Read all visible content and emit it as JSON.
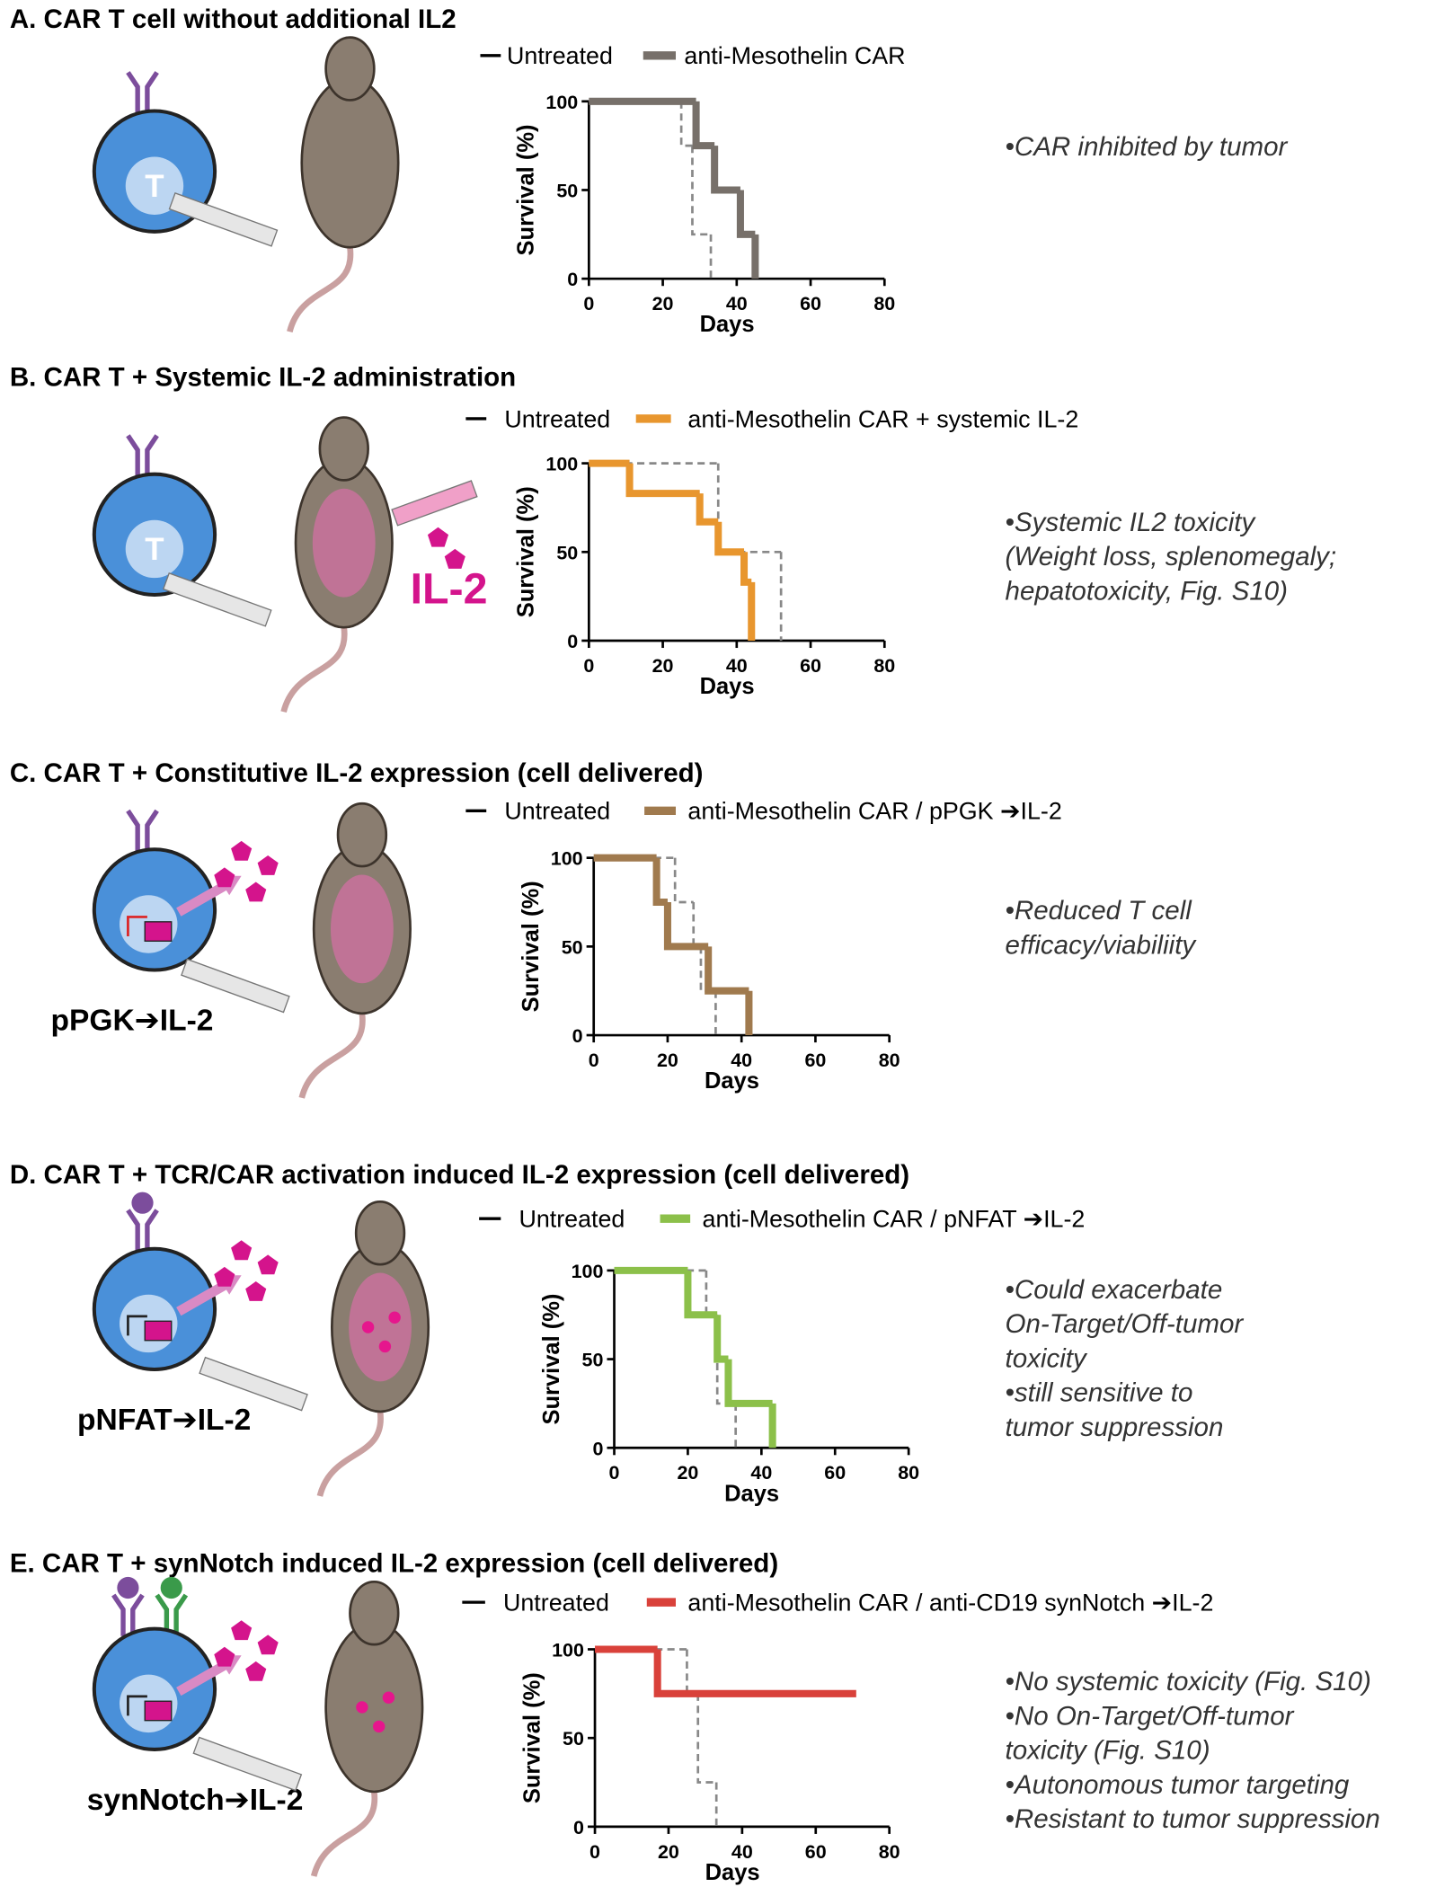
{
  "chart_data": [
    {
      "type": "line",
      "step": true,
      "title": "A. CAR T cell without additional IL2",
      "cell_text": "T",
      "xlabel": "Days",
      "ylabel": "Survival (%)",
      "xlim": [
        0,
        80
      ],
      "ylim": [
        0,
        100
      ],
      "xticks": [
        0,
        20,
        40,
        60,
        80
      ],
      "yticks": [
        0,
        50,
        100
      ],
      "series": [
        {
          "name": "Untreated",
          "color": "#888888",
          "dashed": true,
          "x": [
            0,
            25,
            28,
            33
          ],
          "values": [
            100,
            75,
            25,
            0
          ]
        },
        {
          "name": "anti-Mesothelin CAR",
          "color": "#77706a",
          "x": [
            0,
            29,
            34,
            41,
            45
          ],
          "values": [
            100,
            75,
            50,
            25,
            0
          ]
        }
      ],
      "annotations": [
        "•CAR inhibited by tumor"
      ]
    },
    {
      "type": "line",
      "step": true,
      "title": "B. CAR T + Systemic IL-2 administration",
      "cell_text": "T",
      "cytokine_label": "IL-2",
      "xlabel": "Days",
      "ylabel": "Survival (%)",
      "xlim": [
        0,
        80
      ],
      "ylim": [
        0,
        100
      ],
      "xticks": [
        0,
        20,
        40,
        60,
        80
      ],
      "yticks": [
        0,
        50,
        100
      ],
      "series": [
        {
          "name": "Untreated",
          "color": "#888888",
          "dashed": true,
          "x": [
            0,
            35,
            52
          ],
          "values": [
            100,
            50,
            0
          ]
        },
        {
          "name": "anti-Mesothelin CAR + systemic IL-2",
          "color": "#e8962e",
          "x": [
            0,
            11,
            30,
            35,
            42,
            44
          ],
          "values": [
            100,
            83,
            67,
            50,
            33,
            0
          ]
        }
      ],
      "annotations": [
        "•Systemic IL2 toxicity",
        "(Weight loss, splenomegaly;",
        "hepatotoxicity, Fig. S10)"
      ]
    },
    {
      "type": "line",
      "step": true,
      "title": "C. CAR T + Constitutive IL-2 expression (cell delivered)",
      "construct_label": "pPGK➔IL-2",
      "xlabel": "Days",
      "ylabel": "Survival (%)",
      "xlim": [
        0,
        80
      ],
      "ylim": [
        0,
        100
      ],
      "xticks": [
        0,
        20,
        40,
        60,
        80
      ],
      "yticks": [
        0,
        50,
        100
      ],
      "series": [
        {
          "name": "Untreated",
          "color": "#888888",
          "dashed": true,
          "x": [
            0,
            22,
            27,
            29,
            33
          ],
          "values": [
            100,
            75,
            50,
            25,
            0
          ]
        },
        {
          "name": "anti-Mesothelin CAR / pPGK ➔IL-2",
          "color": "#a07a4e",
          "x": [
            0,
            17,
            20,
            31,
            42
          ],
          "values": [
            100,
            75,
            50,
            25,
            0
          ]
        }
      ],
      "annotations": [
        "•Reduced T cell",
        "efficacy/viabiliity"
      ]
    },
    {
      "type": "line",
      "step": true,
      "title": "D. CAR T + TCR/CAR activation induced IL-2 expression (cell delivered)",
      "construct_label": "pNFAT➔IL-2",
      "xlabel": "Days",
      "ylabel": "Survival (%)",
      "xlim": [
        0,
        80
      ],
      "ylim": [
        0,
        100
      ],
      "xticks": [
        0,
        20,
        40,
        60,
        80
      ],
      "yticks": [
        0,
        50,
        100
      ],
      "series": [
        {
          "name": "Untreated",
          "color": "#888888",
          "dashed": true,
          "x": [
            0,
            25,
            28,
            33
          ],
          "values": [
            100,
            75,
            25,
            0
          ]
        },
        {
          "name": "anti-Mesothelin CAR / pNFAT ➔IL-2",
          "color": "#8cc04a",
          "x": [
            0,
            20,
            28,
            31,
            43
          ],
          "values": [
            100,
            75,
            50,
            25,
            0
          ]
        }
      ],
      "annotations": [
        "•Could exacerbate",
        "On-Target/Off-tumor",
        "toxicity",
        "•still sensitive to",
        "tumor suppression"
      ]
    },
    {
      "type": "line",
      "step": true,
      "title": "E. CAR T + synNotch induced IL-2 expression (cell delivered)",
      "construct_label": "synNotch➔IL-2",
      "xlabel": "Days",
      "ylabel": "Survival (%)",
      "xlim": [
        0,
        80
      ],
      "ylim": [
        0,
        100
      ],
      "xticks": [
        0,
        20,
        40,
        60,
        80
      ],
      "yticks": [
        0,
        50,
        100
      ],
      "series": [
        {
          "name": "Untreated",
          "color": "#888888",
          "dashed": true,
          "x": [
            0,
            25,
            28,
            33
          ],
          "values": [
            100,
            75,
            25,
            0
          ]
        },
        {
          "name": "anti-Mesothelin CAR / anti-CD19 synNotch ➔IL-2",
          "color": "#d9413a",
          "x": [
            0,
            17,
            71
          ],
          "values": [
            100,
            75,
            75
          ]
        }
      ],
      "annotations": [
        "•No systemic toxicity (Fig. S10)",
        "•No On-Target/Off-tumor",
        "toxicity (Fig. S10)",
        "•Autonomous tumor targeting",
        "•Resistant to tumor suppression"
      ]
    }
  ]
}
